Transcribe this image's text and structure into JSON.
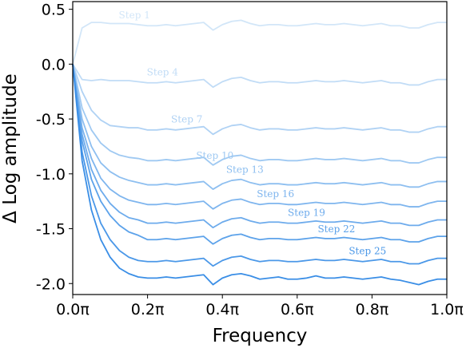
{
  "chart_data": {
    "type": "line",
    "title": "",
    "xlabel": "Frequency",
    "ylabel": "Δ Log amplitude",
    "xlim": [
      0.0,
      1.0
    ],
    "ylim": [
      -2.1,
      0.57
    ],
    "x_ticks": [
      {
        "value": 0.0,
        "label": "0.0π"
      },
      {
        "value": 0.2,
        "label": "0.2π"
      },
      {
        "value": 0.4,
        "label": "0.4π"
      },
      {
        "value": 0.6,
        "label": "0.6π"
      },
      {
        "value": 0.8,
        "label": "0.8π"
      },
      {
        "value": 1.0,
        "label": "1.0π"
      }
    ],
    "y_ticks": [
      {
        "value": 0.5,
        "label": "0.5"
      },
      {
        "value": 0.0,
        "label": "0.0"
      },
      {
        "value": -0.5,
        "label": "-0.5"
      },
      {
        "value": -1.0,
        "label": "-1.0"
      },
      {
        "value": -1.5,
        "label": "-1.5"
      },
      {
        "value": -2.0,
        "label": "-2.0"
      }
    ],
    "grid": false,
    "legend": "none",
    "colors": {
      "light": "#d2e6f8",
      "dark": "#3a8ee6"
    },
    "x": [
      0.0,
      0.025,
      0.05,
      0.075,
      0.1,
      0.125,
      0.15,
      0.175,
      0.2,
      0.225,
      0.25,
      0.275,
      0.3,
      0.325,
      0.35,
      0.375,
      0.4,
      0.425,
      0.45,
      0.475,
      0.5,
      0.525,
      0.55,
      0.575,
      0.6,
      0.625,
      0.65,
      0.675,
      0.7,
      0.725,
      0.75,
      0.775,
      0.8,
      0.825,
      0.85,
      0.875,
      0.9,
      0.925,
      0.95,
      0.975,
      1.0
    ],
    "series": [
      {
        "name": "Step 1",
        "label_x": 0.165,
        "values": [
          0.0,
          0.33,
          0.38,
          0.38,
          0.37,
          0.37,
          0.37,
          0.36,
          0.35,
          0.35,
          0.36,
          0.35,
          0.36,
          0.37,
          0.38,
          0.31,
          0.36,
          0.39,
          0.4,
          0.37,
          0.35,
          0.36,
          0.36,
          0.35,
          0.35,
          0.36,
          0.37,
          0.36,
          0.36,
          0.37,
          0.36,
          0.35,
          0.36,
          0.37,
          0.35,
          0.35,
          0.33,
          0.33,
          0.36,
          0.38,
          0.38
        ]
      },
      {
        "name": "Step 4",
        "label_x": 0.24,
        "values": [
          0.0,
          -0.14,
          -0.15,
          -0.14,
          -0.15,
          -0.15,
          -0.15,
          -0.16,
          -0.17,
          -0.17,
          -0.16,
          -0.17,
          -0.16,
          -0.15,
          -0.14,
          -0.21,
          -0.16,
          -0.13,
          -0.12,
          -0.15,
          -0.17,
          -0.16,
          -0.16,
          -0.17,
          -0.17,
          -0.16,
          -0.15,
          -0.16,
          -0.16,
          -0.15,
          -0.16,
          -0.17,
          -0.16,
          -0.15,
          -0.17,
          -0.17,
          -0.19,
          -0.19,
          -0.16,
          -0.14,
          -0.14
        ]
      },
      {
        "name": "Step 7",
        "label_x": 0.305,
        "values": [
          0.0,
          -0.25,
          -0.42,
          -0.51,
          -0.56,
          -0.57,
          -0.58,
          -0.58,
          -0.6,
          -0.6,
          -0.59,
          -0.6,
          -0.59,
          -0.58,
          -0.57,
          -0.64,
          -0.59,
          -0.56,
          -0.55,
          -0.58,
          -0.6,
          -0.59,
          -0.59,
          -0.6,
          -0.6,
          -0.59,
          -0.58,
          -0.59,
          -0.59,
          -0.58,
          -0.59,
          -0.6,
          -0.59,
          -0.58,
          -0.6,
          -0.6,
          -0.62,
          -0.62,
          -0.59,
          -0.57,
          -0.57
        ]
      },
      {
        "name": "Step 10",
        "label_x": 0.38,
        "values": [
          0.0,
          -0.4,
          -0.6,
          -0.72,
          -0.79,
          -0.83,
          -0.85,
          -0.86,
          -0.88,
          -0.88,
          -0.87,
          -0.88,
          -0.87,
          -0.86,
          -0.85,
          -0.92,
          -0.87,
          -0.84,
          -0.83,
          -0.86,
          -0.88,
          -0.87,
          -0.87,
          -0.88,
          -0.88,
          -0.87,
          -0.86,
          -0.87,
          -0.87,
          -0.86,
          -0.87,
          -0.88,
          -0.87,
          -0.86,
          -0.88,
          -0.88,
          -0.9,
          -0.9,
          -0.87,
          -0.85,
          -0.85
        ]
      },
      {
        "name": "Step 13",
        "label_x": 0.46,
        "values": [
          0.0,
          -0.5,
          -0.75,
          -0.9,
          -0.98,
          -1.03,
          -1.06,
          -1.08,
          -1.1,
          -1.1,
          -1.09,
          -1.1,
          -1.09,
          -1.08,
          -1.07,
          -1.14,
          -1.09,
          -1.06,
          -1.05,
          -1.08,
          -1.1,
          -1.09,
          -1.09,
          -1.1,
          -1.1,
          -1.09,
          -1.08,
          -1.09,
          -1.09,
          -1.08,
          -1.09,
          -1.1,
          -1.09,
          -1.08,
          -1.1,
          -1.1,
          -1.12,
          -1.12,
          -1.09,
          -1.07,
          -1.07
        ]
      },
      {
        "name": "Step 16",
        "label_x": 0.542,
        "values": [
          0.0,
          -0.58,
          -0.86,
          -1.04,
          -1.14,
          -1.2,
          -1.24,
          -1.26,
          -1.28,
          -1.28,
          -1.27,
          -1.28,
          -1.27,
          -1.26,
          -1.25,
          -1.32,
          -1.27,
          -1.24,
          -1.23,
          -1.26,
          -1.28,
          -1.27,
          -1.27,
          -1.28,
          -1.28,
          -1.27,
          -1.26,
          -1.27,
          -1.27,
          -1.26,
          -1.27,
          -1.28,
          -1.27,
          -1.26,
          -1.28,
          -1.28,
          -1.3,
          -1.3,
          -1.27,
          -1.25,
          -1.25
        ]
      },
      {
        "name": "Step 19",
        "label_x": 0.625,
        "values": [
          0.0,
          -0.64,
          -0.96,
          -1.15,
          -1.27,
          -1.35,
          -1.4,
          -1.42,
          -1.45,
          -1.45,
          -1.44,
          -1.45,
          -1.44,
          -1.43,
          -1.42,
          -1.49,
          -1.44,
          -1.41,
          -1.4,
          -1.43,
          -1.45,
          -1.44,
          -1.44,
          -1.45,
          -1.45,
          -1.44,
          -1.43,
          -1.44,
          -1.44,
          -1.43,
          -1.44,
          -1.45,
          -1.44,
          -1.43,
          -1.45,
          -1.45,
          -1.47,
          -1.47,
          -1.44,
          -1.42,
          -1.42
        ]
      },
      {
        "name": "Step 22",
        "label_x": 0.705,
        "values": [
          0.0,
          -0.7,
          -1.05,
          -1.25,
          -1.38,
          -1.47,
          -1.53,
          -1.56,
          -1.6,
          -1.6,
          -1.59,
          -1.6,
          -1.59,
          -1.58,
          -1.57,
          -1.64,
          -1.59,
          -1.56,
          -1.55,
          -1.58,
          -1.6,
          -1.59,
          -1.59,
          -1.6,
          -1.6,
          -1.59,
          -1.58,
          -1.59,
          -1.59,
          -1.58,
          -1.59,
          -1.6,
          -1.59,
          -1.58,
          -1.6,
          -1.6,
          -1.62,
          -1.62,
          -1.59,
          -1.57,
          -1.57
        ]
      },
      {
        "name": "Step 25",
        "label_x": 0.788,
        "values": [
          0.0,
          -0.8,
          -1.2,
          -1.45,
          -1.6,
          -1.7,
          -1.76,
          -1.79,
          -1.8,
          -1.8,
          -1.79,
          -1.8,
          -1.79,
          -1.78,
          -1.77,
          -1.84,
          -1.79,
          -1.76,
          -1.75,
          -1.78,
          -1.8,
          -1.79,
          -1.79,
          -1.8,
          -1.8,
          -1.79,
          -1.78,
          -1.79,
          -1.79,
          -1.78,
          -1.79,
          -1.8,
          -1.79,
          -1.78,
          -1.8,
          -1.8,
          -1.82,
          -1.82,
          -1.79,
          -1.77,
          -1.77
        ]
      },
      {
        "name": "",
        "label_x": null,
        "values": [
          0.0,
          -0.88,
          -1.33,
          -1.6,
          -1.76,
          -1.86,
          -1.91,
          -1.94,
          -1.95,
          -1.95,
          -1.94,
          -1.95,
          -1.94,
          -1.93,
          -1.92,
          -2.01,
          -1.95,
          -1.92,
          -1.91,
          -1.93,
          -1.96,
          -1.95,
          -1.94,
          -1.96,
          -1.96,
          -1.95,
          -1.93,
          -1.95,
          -1.95,
          -1.94,
          -1.95,
          -1.96,
          -1.95,
          -1.94,
          -1.96,
          -1.97,
          -1.99,
          -2.01,
          -1.98,
          -1.96,
          -1.96
        ]
      }
    ]
  }
}
